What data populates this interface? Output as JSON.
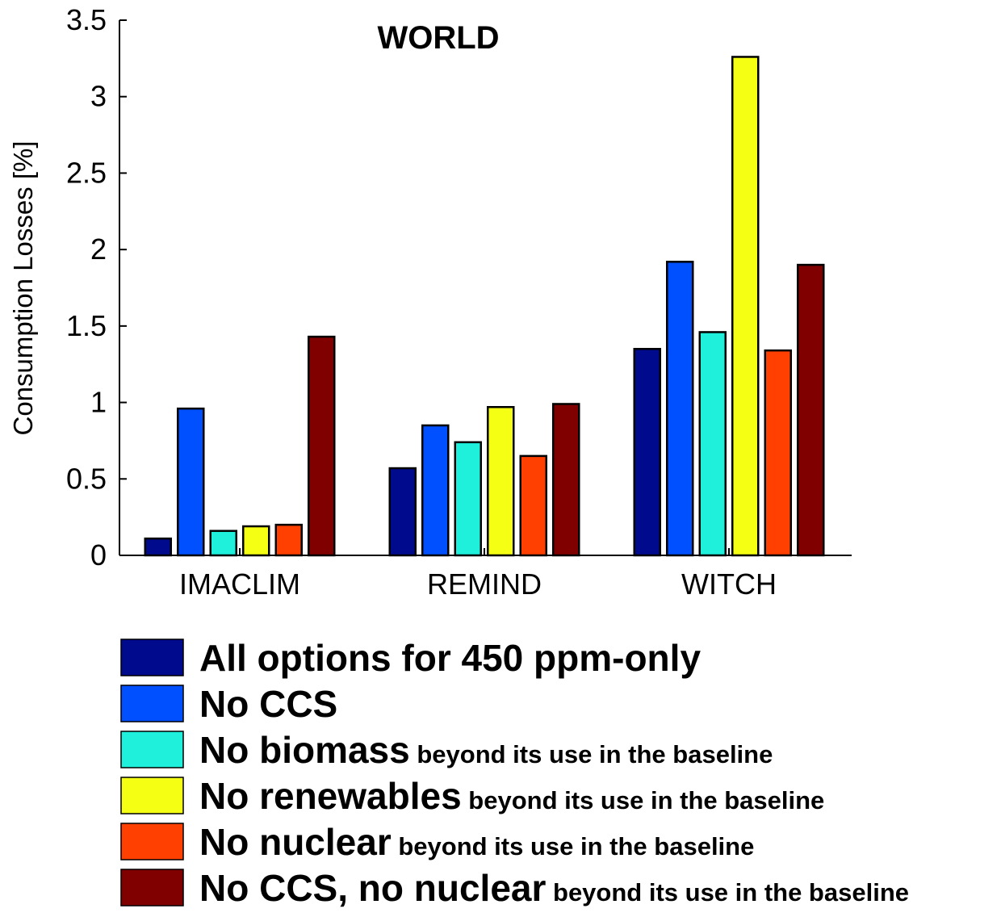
{
  "chart_data": {
    "type": "bar",
    "title": "WORLD",
    "ylabel": "Consumption Losses [%]",
    "xlabel": "",
    "ylim": [
      0,
      3.5
    ],
    "yticks": [
      "0",
      "0.5",
      "1",
      "1.5",
      "2",
      "2.5",
      "3",
      "3.5"
    ],
    "categories": [
      "IMACLIM",
      "REMIND",
      "WITCH"
    ],
    "series": [
      {
        "name": "All options for 450 ppm-only",
        "name_suffix": "",
        "color": "#000a8c",
        "values": [
          0.11,
          0.57,
          1.35
        ]
      },
      {
        "name": "No CCS",
        "name_suffix": "",
        "color": "#0050ff",
        "values": [
          0.96,
          0.85,
          1.92
        ]
      },
      {
        "name": "No biomass",
        "name_suffix": "beyond its use in the baseline",
        "color": "#1ef0dc",
        "values": [
          0.16,
          0.74,
          1.46
        ]
      },
      {
        "name": "No renewables",
        "name_suffix": "beyond its use in the baseline",
        "color": "#f5ff14",
        "values": [
          0.19,
          0.97,
          3.26
        ]
      },
      {
        "name": "No nuclear",
        "name_suffix": "beyond its use in the baseline",
        "color": "#ff4000",
        "values": [
          0.2,
          0.65,
          1.34
        ]
      },
      {
        "name": "No CCS, no nuclear",
        "name_suffix": "beyond its use in the baseline",
        "color": "#800000",
        "values": [
          1.43,
          0.99,
          1.9
        ]
      }
    ],
    "grid": false,
    "legend_position": "bottom"
  }
}
